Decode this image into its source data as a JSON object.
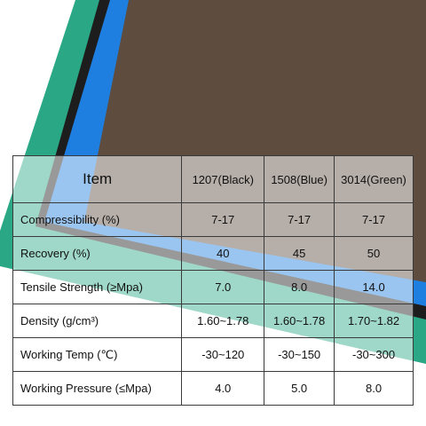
{
  "table": {
    "header": [
      "Item",
      "1207(Black)",
      "1508(Blue)",
      "3014(Green)"
    ],
    "rows": [
      [
        "Compressibility (%)",
        "7-17",
        "7-17",
        "7-17"
      ],
      [
        "Recovery (%)",
        "40",
        "45",
        "50"
      ],
      [
        "Tensile Strength (≥Mpa)",
        "7.0",
        "8.0",
        "14.0"
      ],
      [
        "Density (g/cm³)",
        "1.60~1.78",
        "1.60~1.78",
        "1.70~1.82"
      ],
      [
        "Working Temp (℃)",
        "-30~120",
        "-30~150",
        "-30~300"
      ],
      [
        "Working Pressure (≤Mpa)",
        "4.0",
        "5.0",
        "8.0"
      ]
    ]
  }
}
